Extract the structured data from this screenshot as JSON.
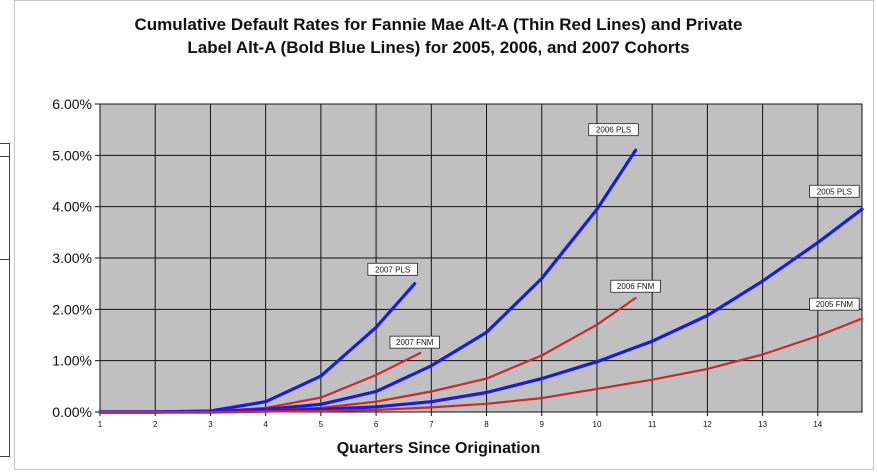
{
  "chart_data": {
    "type": "line",
    "title_line1": "Cumulative Default Rates for Fannie Mae Alt-A (Thin Red Lines) and Private",
    "title_line2": "Label Alt-A (Bold Blue Lines) for 2005, 2006, and 2007 Cohorts",
    "xlabel": "Quarters Since Origination",
    "ylabel": "",
    "xlim": [
      1,
      14.8
    ],
    "ylim": [
      0,
      6
    ],
    "x_ticks": [
      "1",
      "2",
      "3",
      "4",
      "5",
      "6",
      "7",
      "8",
      "9",
      "10",
      "11",
      "12",
      "13",
      "14"
    ],
    "y_ticks": [
      "0.00%",
      "1.00%",
      "2.00%",
      "3.00%",
      "4.00%",
      "5.00%",
      "6.00%"
    ],
    "grid": true,
    "colors": {
      "plot_bg": "#c0c0c0",
      "pls": "#1a1ae6",
      "fnm": "#d02828",
      "grid": "#111111"
    },
    "series": [
      {
        "name": "2007 PLS",
        "color": "#1a1ae6",
        "weight": "bold",
        "x": [
          1,
          2,
          3,
          4,
          5,
          6,
          6.7
        ],
        "y": [
          0,
          0,
          0.02,
          0.2,
          0.7,
          1.65,
          2.5
        ]
      },
      {
        "name": "2007 FNM",
        "color": "#d02828",
        "weight": "thin",
        "x": [
          1,
          2,
          3,
          4,
          5,
          6,
          6.8
        ],
        "y": [
          0,
          0,
          0.01,
          0.08,
          0.28,
          0.72,
          1.15
        ]
      },
      {
        "name": "2006 PLS",
        "color": "#1a1ae6",
        "weight": "bold",
        "x": [
          1,
          2,
          3,
          4,
          5,
          6,
          7,
          8,
          9,
          10,
          10.7
        ],
        "y": [
          0,
          0,
          0.01,
          0.05,
          0.15,
          0.4,
          0.9,
          1.55,
          2.6,
          3.95,
          5.1
        ]
      },
      {
        "name": "2006 FNM",
        "color": "#d02828",
        "weight": "thin",
        "x": [
          1,
          2,
          3,
          4,
          5,
          6,
          7,
          8,
          9,
          10,
          10.7
        ],
        "y": [
          0,
          0,
          0,
          0.03,
          0.08,
          0.2,
          0.4,
          0.65,
          1.1,
          1.7,
          2.22
        ]
      },
      {
        "name": "2005 PLS",
        "color": "#1a1ae6",
        "weight": "bold",
        "x": [
          1,
          2,
          3,
          4,
          5,
          6,
          7,
          8,
          9,
          10,
          11,
          12,
          13,
          14,
          14.8
        ],
        "y": [
          0,
          0,
          0,
          0.02,
          0.05,
          0.1,
          0.2,
          0.38,
          0.65,
          0.98,
          1.38,
          1.88,
          2.55,
          3.3,
          3.95
        ]
      },
      {
        "name": "2005 FNM",
        "color": "#d02828",
        "weight": "thin",
        "x": [
          1,
          2,
          3,
          4,
          5,
          6,
          7,
          8,
          9,
          10,
          11,
          12,
          13,
          14,
          14.8
        ],
        "y": [
          0,
          0,
          0,
          0.01,
          0.02,
          0.04,
          0.09,
          0.16,
          0.27,
          0.45,
          0.63,
          0.84,
          1.12,
          1.48,
          1.82
        ]
      }
    ],
    "labels": [
      {
        "text": "2007 PLS",
        "series": "2007 PLS",
        "x": 6.3,
        "y": 2.78
      },
      {
        "text": "2007 FNM",
        "series": "2007 FNM",
        "x": 6.7,
        "y": 1.36
      },
      {
        "text": "2006 PLS",
        "series": "2006 PLS",
        "x": 10.3,
        "y": 5.5
      },
      {
        "text": "2006 FNM",
        "series": "2006 FNM",
        "x": 10.7,
        "y": 2.45
      },
      {
        "text": "2005 PLS",
        "series": "2005 PLS",
        "x": 14.3,
        "y": 4.3
      },
      {
        "text": "2005 FNM",
        "series": "2005 FNM",
        "x": 14.3,
        "y": 2.1
      }
    ]
  }
}
